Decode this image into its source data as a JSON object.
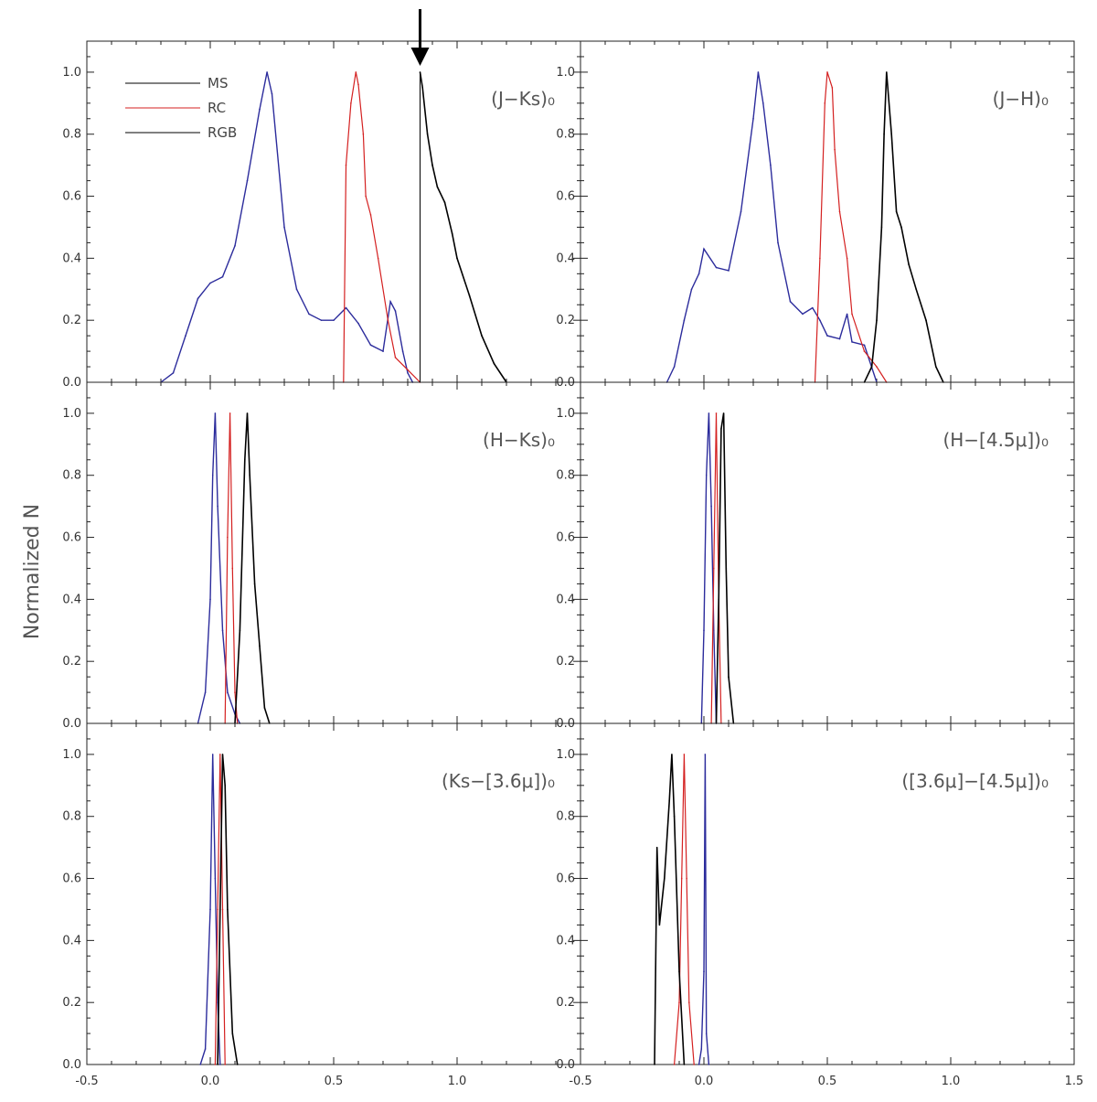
{
  "figure": {
    "ylabel": "Normalized N",
    "x_ticks": [
      "-0.5",
      "0.0",
      "0.5",
      "1.0",
      "-0.5",
      "0.0",
      "0.5",
      "1.0",
      "1.5"
    ],
    "y_ticks": [
      "0.0",
      "0.2",
      "0.4",
      "0.6",
      "0.8",
      "1.0"
    ],
    "legend": [
      {
        "label": "MS",
        "color": "#000000"
      },
      {
        "label": "RC",
        "color": "#d42020"
      },
      {
        "label": "RGB",
        "color": "#000000"
      }
    ],
    "colors": {
      "MS": "#2c2c9c",
      "RC": "#d42020",
      "RGB": "#000000",
      "legend_MS": "#000000"
    },
    "arrow_marker_x": 0.85
  },
  "chart_data": [
    {
      "type": "line",
      "panel_label": "(J−Ks)₀",
      "xlim": [
        -0.5,
        1.5
      ],
      "ylim": [
        0,
        1.1
      ],
      "series": [
        {
          "name": "MS",
          "x": [
            -0.2,
            -0.15,
            -0.1,
            -0.05,
            0.0,
            0.05,
            0.1,
            0.15,
            0.2,
            0.23,
            0.25,
            0.3,
            0.35,
            0.4,
            0.45,
            0.5,
            0.55,
            0.6,
            0.65,
            0.7,
            0.73,
            0.75,
            0.78,
            0.8,
            0.82
          ],
          "y": [
            0.0,
            0.03,
            0.15,
            0.27,
            0.32,
            0.34,
            0.44,
            0.65,
            0.88,
            1.0,
            0.93,
            0.5,
            0.3,
            0.22,
            0.2,
            0.2,
            0.24,
            0.19,
            0.12,
            0.1,
            0.26,
            0.23,
            0.1,
            0.03,
            0.0
          ]
        },
        {
          "name": "RC",
          "x": [
            0.54,
            0.55,
            0.57,
            0.59,
            0.6,
            0.62,
            0.63,
            0.65,
            0.68,
            0.72,
            0.75,
            0.8,
            0.85
          ],
          "y": [
            0.0,
            0.7,
            0.9,
            1.0,
            0.96,
            0.8,
            0.6,
            0.54,
            0.4,
            0.2,
            0.08,
            0.04,
            0.0
          ]
        },
        {
          "name": "RGB",
          "x": [
            0.85,
            0.86,
            0.88,
            0.9,
            0.92,
            0.95,
            0.98,
            1.0,
            1.05,
            1.1,
            1.15,
            1.2
          ],
          "y": [
            1.0,
            0.95,
            0.8,
            0.7,
            0.63,
            0.58,
            0.48,
            0.4,
            0.28,
            0.15,
            0.06,
            0.0
          ]
        }
      ]
    },
    {
      "type": "line",
      "panel_label": "(J−H)₀",
      "xlim": [
        -0.5,
        1.5
      ],
      "ylim": [
        0,
        1.1
      ],
      "series": [
        {
          "name": "MS",
          "x": [
            -0.15,
            -0.12,
            -0.08,
            -0.05,
            -0.02,
            0.0,
            0.05,
            0.1,
            0.15,
            0.2,
            0.22,
            0.24,
            0.27,
            0.3,
            0.35,
            0.4,
            0.44,
            0.47,
            0.5,
            0.55,
            0.58,
            0.6,
            0.65,
            0.7
          ],
          "y": [
            0.0,
            0.05,
            0.2,
            0.3,
            0.35,
            0.43,
            0.37,
            0.36,
            0.55,
            0.85,
            1.0,
            0.9,
            0.7,
            0.45,
            0.26,
            0.22,
            0.24,
            0.2,
            0.15,
            0.14,
            0.22,
            0.13,
            0.12,
            0.0
          ]
        },
        {
          "name": "RC",
          "x": [
            0.45,
            0.47,
            0.49,
            0.5,
            0.52,
            0.53,
            0.55,
            0.58,
            0.6,
            0.65,
            0.7,
            0.74
          ],
          "y": [
            0.0,
            0.4,
            0.9,
            1.0,
            0.95,
            0.75,
            0.55,
            0.4,
            0.22,
            0.1,
            0.05,
            0.0
          ]
        },
        {
          "name": "RGB",
          "x": [
            0.65,
            0.68,
            0.7,
            0.72,
            0.73,
            0.74,
            0.76,
            0.78,
            0.8,
            0.83,
            0.86,
            0.9,
            0.94,
            0.97
          ],
          "y": [
            0.0,
            0.05,
            0.2,
            0.5,
            0.8,
            1.0,
            0.8,
            0.55,
            0.5,
            0.38,
            0.3,
            0.2,
            0.05,
            0.0
          ]
        }
      ]
    },
    {
      "type": "line",
      "panel_label": "(H−Ks)₀",
      "xlim": [
        -0.5,
        1.5
      ],
      "ylim": [
        0,
        1.1
      ],
      "series": [
        {
          "name": "MS",
          "x": [
            -0.05,
            -0.02,
            0.0,
            0.01,
            0.02,
            0.03,
            0.05,
            0.07,
            0.1,
            0.12
          ],
          "y": [
            0.0,
            0.1,
            0.4,
            0.8,
            1.0,
            0.7,
            0.3,
            0.1,
            0.03,
            0.0
          ]
        },
        {
          "name": "RC",
          "x": [
            0.06,
            0.07,
            0.08,
            0.09,
            0.1,
            0.11
          ],
          "y": [
            0.0,
            0.6,
            1.0,
            0.5,
            0.1,
            0.0
          ]
        },
        {
          "name": "RGB",
          "x": [
            0.1,
            0.12,
            0.14,
            0.15,
            0.16,
            0.18,
            0.2,
            0.22,
            0.24
          ],
          "y": [
            0.0,
            0.3,
            0.85,
            1.0,
            0.8,
            0.45,
            0.25,
            0.05,
            0.0
          ]
        }
      ]
    },
    {
      "type": "line",
      "panel_label": "(H−[4.5μ])₀",
      "xlim": [
        -0.5,
        1.5
      ],
      "ylim": [
        0,
        1.1
      ],
      "series": [
        {
          "name": "MS",
          "x": [
            -0.01,
            0.0,
            0.01,
            0.02,
            0.03,
            0.04,
            0.05
          ],
          "y": [
            0.0,
            0.3,
            0.8,
            1.0,
            0.7,
            0.3,
            0.0
          ]
        },
        {
          "name": "RC",
          "x": [
            0.03,
            0.04,
            0.05,
            0.06,
            0.07
          ],
          "y": [
            0.0,
            0.5,
            1.0,
            0.4,
            0.0
          ]
        },
        {
          "name": "RGB",
          "x": [
            0.05,
            0.06,
            0.07,
            0.08,
            0.09,
            0.1,
            0.12
          ],
          "y": [
            0.0,
            0.4,
            0.95,
            1.0,
            0.5,
            0.15,
            0.0
          ]
        }
      ]
    },
    {
      "type": "line",
      "panel_label": "(Ks−[3.6μ])₀",
      "xlim": [
        -0.5,
        1.5
      ],
      "ylim": [
        0,
        1.1
      ],
      "series": [
        {
          "name": "MS",
          "x": [
            -0.04,
            -0.02,
            0.0,
            0.01,
            0.02,
            0.03,
            0.04
          ],
          "y": [
            0.0,
            0.05,
            0.5,
            1.0,
            0.6,
            0.2,
            0.0
          ]
        },
        {
          "name": "RC",
          "x": [
            0.02,
            0.03,
            0.04,
            0.05,
            0.06
          ],
          "y": [
            0.0,
            0.5,
            1.0,
            0.5,
            0.0
          ]
        },
        {
          "name": "RGB",
          "x": [
            0.03,
            0.04,
            0.05,
            0.06,
            0.07,
            0.09,
            0.11
          ],
          "y": [
            0.0,
            0.5,
            1.0,
            0.9,
            0.5,
            0.1,
            0.0
          ]
        }
      ]
    },
    {
      "type": "line",
      "panel_label": "([3.6μ]−[4.5μ])₀",
      "xlim": [
        -0.5,
        1.5
      ],
      "ylim": [
        0,
        1.1
      ],
      "series": [
        {
          "name": "MS",
          "x": [
            -0.02,
            -0.01,
            0.0,
            0.005,
            0.01,
            0.02
          ],
          "y": [
            0.0,
            0.05,
            0.3,
            1.0,
            0.1,
            0.0
          ]
        },
        {
          "name": "RC",
          "x": [
            -0.12,
            -0.1,
            -0.09,
            -0.08,
            -0.07,
            -0.06,
            -0.04
          ],
          "y": [
            0.0,
            0.2,
            0.6,
            1.0,
            0.6,
            0.2,
            0.0
          ]
        },
        {
          "name": "RGB",
          "x": [
            -0.2,
            -0.19,
            -0.18,
            -0.16,
            -0.14,
            -0.13,
            -0.12,
            -0.1,
            -0.08
          ],
          "y": [
            0.0,
            0.7,
            0.45,
            0.6,
            0.85,
            1.0,
            0.8,
            0.3,
            0.0
          ]
        }
      ]
    }
  ]
}
